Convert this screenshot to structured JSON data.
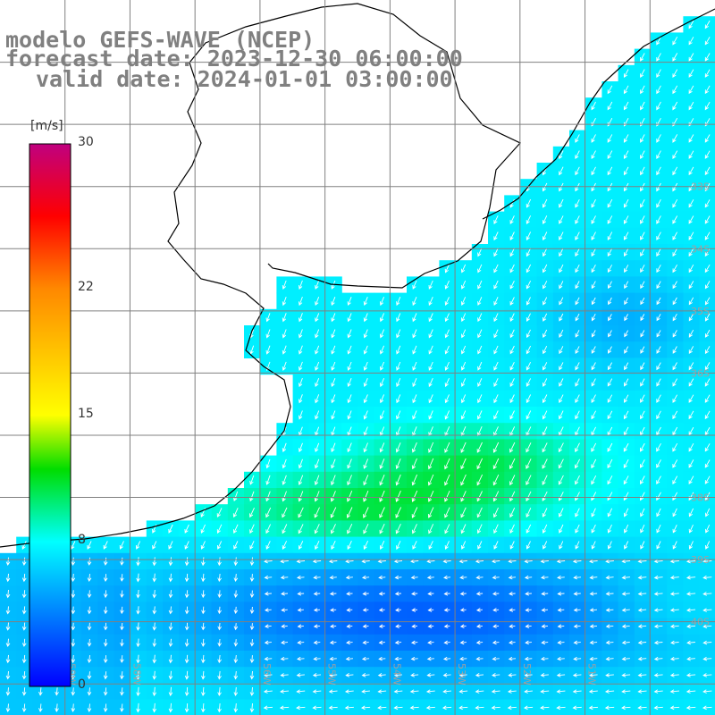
{
  "title": {
    "model": "modelo GEFS-WAVE (NCEP)",
    "forecast": "forecast date: 2023-12-30 06:00:00",
    "valid": "valid date: 2024-01-01 03:00:00"
  },
  "colorbar": {
    "unit": "[m/s]",
    "min": 0,
    "max": 30,
    "ticks": [
      {
        "value": 30,
        "label": "30"
      },
      {
        "value": 22,
        "label": "22"
      },
      {
        "value": 15,
        "label": "15"
      },
      {
        "value": 8,
        "label": "8"
      },
      {
        "value": 0,
        "label": "0"
      }
    ],
    "stops": [
      {
        "value": 0,
        "color": "#0000ff"
      },
      {
        "value": 8,
        "color": "#00ffff"
      },
      {
        "value": 12,
        "color": "#00dd00"
      },
      {
        "value": 15,
        "color": "#ffff00"
      },
      {
        "value": 22,
        "color": "#ff8800"
      },
      {
        "value": 26,
        "color": "#ff0000"
      },
      {
        "value": 30,
        "color": "#c0007f"
      }
    ]
  },
  "map": {
    "lon_range": [
      -60,
      -49
    ],
    "lat_range": [
      -41.5,
      -30
    ],
    "gridlines": {
      "lons": [
        -59,
        -58,
        -57,
        -56,
        -55,
        -54,
        -53,
        -52,
        -51,
        -50
      ],
      "lats": [
        -31,
        -32,
        -33,
        -34,
        -35,
        -36,
        -37,
        -38,
        -39,
        -40,
        -41
      ]
    },
    "lat_labels": [
      {
        "lat": -33,
        "text": "33S"
      },
      {
        "lat": -34,
        "text": "34S"
      },
      {
        "lat": -35,
        "text": "35S"
      },
      {
        "lat": -36,
        "text": "36S"
      },
      {
        "lat": -38,
        "text": "38S"
      },
      {
        "lat": -39,
        "text": "39S"
      },
      {
        "lat": -40,
        "text": "40S"
      }
    ],
    "lon_labels": [
      {
        "lon": -59,
        "text": "59W"
      },
      {
        "lon": -58,
        "text": "58W"
      },
      {
        "lon": -56,
        "text": "56W"
      },
      {
        "lon": -55,
        "text": "55W"
      },
      {
        "lon": -54,
        "text": "54W"
      },
      {
        "lon": -53,
        "text": "53W"
      },
      {
        "lon": -52,
        "text": "52W"
      },
      {
        "lon": -51,
        "text": "51W"
      }
    ],
    "colors": {
      "land": "#ffffff",
      "coast": "#000000",
      "grid": "#808080",
      "arrow": "#ffffff",
      "label": "#a0a0a0"
    }
  }
}
